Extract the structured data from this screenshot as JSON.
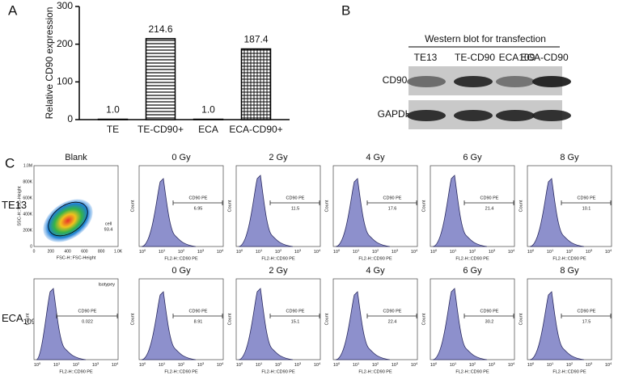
{
  "chart_data": {
    "type": "bar",
    "panel_label": "A",
    "y_label": "Relative CD90 expression",
    "categories": [
      "TE",
      "TE-CD90+",
      "ECA",
      "ECA-CD90+"
    ],
    "values": [
      1.0,
      214.6,
      1.0,
      187.4
    ],
    "value_labels": [
      "1.0",
      "214.6",
      "1.0",
      "187.4"
    ],
    "patterns": [
      "solid",
      "hlines",
      "solid",
      "grid"
    ],
    "color": "#000000",
    "ylim": [
      0,
      300
    ],
    "yticks": [
      0,
      100,
      200,
      300
    ]
  },
  "western_blot": {
    "panel_label": "B",
    "title": "Western blot for transfection",
    "lanes": [
      "TE13",
      "TE-CD90",
      "ECA109",
      "ECA-CD90"
    ],
    "rows": [
      "CD90",
      "GAPDH"
    ]
  },
  "flow_cytometry": {
    "panel_label": "C",
    "hist_x_label": "FL2-H::CD90 PE",
    "hist_y_label": "Count",
    "tick_base": "10",
    "tick_exponents": [
      0,
      1,
      2,
      3,
      4
    ],
    "rows": [
      {
        "label": {
          "text": "TE13"
        },
        "panels": [
          {
            "title": "Blank",
            "kind": "scatter",
            "gate_label": "cell",
            "value": 93.4,
            "x_label": "FSC-H::FSC-Height",
            "y_label": "SSC-H::SSC-Height",
            "xticks": [
              "0",
              "200",
              "400",
              "600",
              "800",
              "1.0K"
            ],
            "yticks": [
              "0",
              "200K",
              "400K",
              "600K",
              "800K",
              "1.0M"
            ]
          },
          {
            "title": "0 Gy",
            "gate_label": "CD90 PE",
            "value": 6.95
          },
          {
            "title": "2 Gy",
            "gate_label": "CD90 PE",
            "value": 11.5
          },
          {
            "title": "4 Gy",
            "gate_label": "CD90 PE",
            "value": 17.6
          },
          {
            "title": "6 Gy",
            "gate_label": "CD90 PE",
            "value": 21.4
          },
          {
            "title": "8 Gy",
            "gate_label": "CD90 PE",
            "value": 10.1
          }
        ]
      },
      {
        "label": {
          "text": "ECA",
          "sub": "109"
        },
        "panels": [
          {
            "tag": "Isotypey",
            "gate_label": "CD90 PE",
            "value": 0.022
          },
          {
            "title": "0 Gy",
            "gate_label": "CD90 PE",
            "value": 8.91
          },
          {
            "title": "2 Gy",
            "gate_label": "CD90 PE",
            "value": 15.1
          },
          {
            "title": "4 Gy",
            "gate_label": "CD90 PE",
            "value": 22.4
          },
          {
            "title": "6 Gy",
            "gate_label": "CD90 PE",
            "value": 30.2
          },
          {
            "title": "8 Gy",
            "gate_label": "CD90 PE",
            "value": 17.5
          }
        ]
      }
    ]
  }
}
